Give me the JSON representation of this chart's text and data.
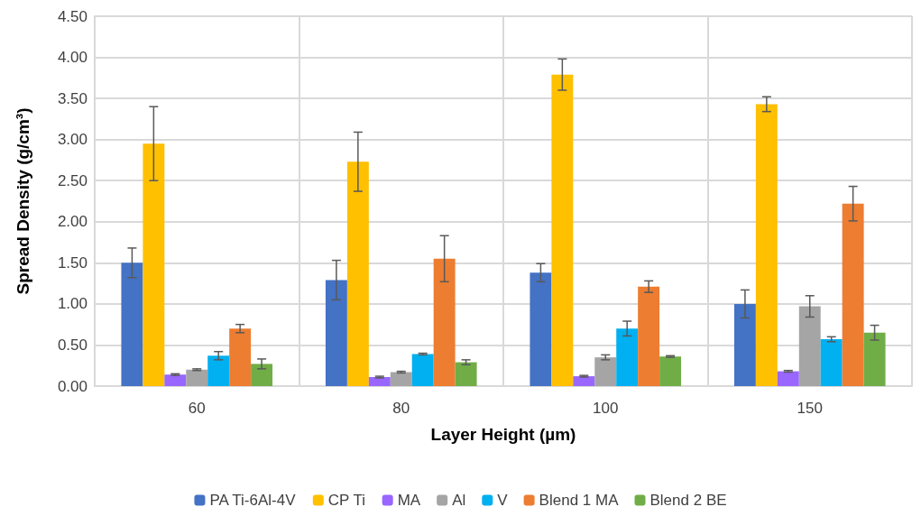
{
  "chart_data": {
    "type": "bar",
    "xlabel": "Layer Height (µm)",
    "ylabel": "Spread Density (g/cm³)",
    "categories": [
      "60",
      "80",
      "100",
      "150"
    ],
    "ylim": [
      0,
      4.5
    ],
    "yticks": [
      {
        "value": 0,
        "label": "0.00"
      },
      {
        "value": 0.5,
        "label": "0.50"
      },
      {
        "value": 1,
        "label": "1.00"
      },
      {
        "value": 1.5,
        "label": "1.50"
      },
      {
        "value": 2,
        "label": "2.00"
      },
      {
        "value": 2.5,
        "label": "2.50"
      },
      {
        "value": 3,
        "label": "3.00"
      },
      {
        "value": 3.5,
        "label": "3.50"
      },
      {
        "value": 4,
        "label": "4.00"
      },
      {
        "value": 4.5,
        "label": "4.50"
      }
    ],
    "grid": true,
    "legend": "bottom",
    "series": [
      {
        "name": "PA Ti-6Al-4V",
        "color": "#4472c4",
        "values": [
          1.5,
          1.29,
          1.38,
          1.0
        ],
        "errors": [
          0.18,
          0.24,
          0.11,
          0.17
        ]
      },
      {
        "name": "CP Ti",
        "color": "#ffc000",
        "values": [
          2.95,
          2.73,
          3.79,
          3.43
        ],
        "errors": [
          0.45,
          0.36,
          0.19,
          0.09
        ]
      },
      {
        "name": "MA",
        "color": "#9966ff",
        "values": [
          0.14,
          0.11,
          0.12,
          0.18
        ],
        "errors": [
          0.01,
          0.01,
          0.01,
          0.01
        ]
      },
      {
        "name": "Al",
        "color": "#a5a5a5",
        "values": [
          0.2,
          0.17,
          0.35,
          0.97
        ],
        "errors": [
          0.01,
          0.01,
          0.03,
          0.13
        ]
      },
      {
        "name": "V",
        "color": "#00b0f0",
        "values": [
          0.37,
          0.39,
          0.7,
          0.57
        ],
        "errors": [
          0.05,
          0.01,
          0.09,
          0.03
        ]
      },
      {
        "name": "Blend 1 MA",
        "color": "#ed7d31",
        "values": [
          0.7,
          1.55,
          1.21,
          2.22
        ],
        "errors": [
          0.05,
          0.28,
          0.07,
          0.21
        ]
      },
      {
        "name": "Blend 2 BE",
        "color": "#70ad47",
        "values": [
          0.27,
          0.29,
          0.36,
          0.65
        ],
        "errors": [
          0.06,
          0.03,
          0.01,
          0.09
        ]
      }
    ]
  }
}
